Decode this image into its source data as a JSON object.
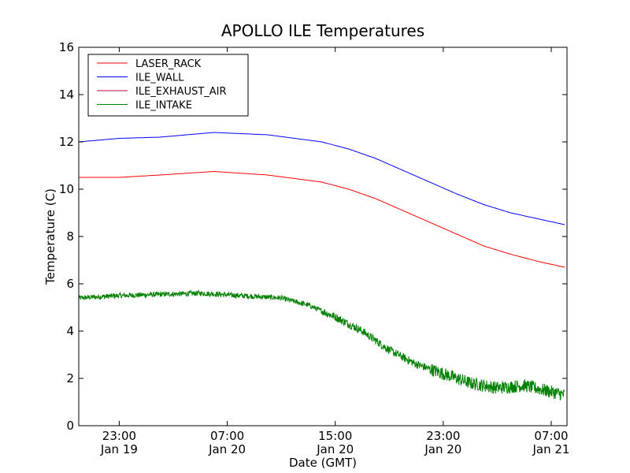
{
  "chart_data": {
    "type": "line",
    "title": "APOLLO ILE Temperatures",
    "xlabel": "Date (GMT)",
    "ylabel": "Temperature (C)",
    "ylim": [
      0,
      16
    ],
    "yticks": [
      "0",
      "2",
      "4",
      "6",
      "8",
      "10",
      "12",
      "14",
      "16"
    ],
    "x_start": "Jan 19 20:00",
    "x_end": "Jan 21 08:10",
    "xticks": [
      {
        "time": "23:00",
        "date": "Jan 19"
      },
      {
        "time": "07:00",
        "date": "Jan 20"
      },
      {
        "time": "15:00",
        "date": "Jan 20"
      },
      {
        "time": "23:00",
        "date": "Jan 20"
      },
      {
        "time": "07:00",
        "date": "Jan 21"
      }
    ],
    "grid": false,
    "legend_position": "top-left",
    "series": [
      {
        "name": "LASER_RACK",
        "color": "#ff0000",
        "x": [
          "Jan 19 20:00",
          "Jan 19 23:00",
          "Jan 20 02:00",
          "Jan 20 06:00",
          "Jan 20 10:00",
          "Jan 20 14:00",
          "Jan 20 16:00",
          "Jan 20 18:00",
          "Jan 20 20:00",
          "Jan 20 22:00",
          "Jan 21 00:00",
          "Jan 21 02:00",
          "Jan 21 04:00",
          "Jan 21 06:00",
          "Jan 21 08:00"
        ],
        "values": [
          10.5,
          10.5,
          10.6,
          10.75,
          10.6,
          10.3,
          10.0,
          9.6,
          9.1,
          8.6,
          8.1,
          7.6,
          7.25,
          6.95,
          6.7
        ]
      },
      {
        "name": "ILE_WALL",
        "color": "#0000ff",
        "x": [
          "Jan 19 20:00",
          "Jan 19 23:00",
          "Jan 20 02:00",
          "Jan 20 04:00",
          "Jan 20 06:00",
          "Jan 20 10:00",
          "Jan 20 14:00",
          "Jan 20 16:00",
          "Jan 20 18:00",
          "Jan 20 20:00",
          "Jan 20 22:00",
          "Jan 21 00:00",
          "Jan 21 02:00",
          "Jan 21 04:00",
          "Jan 21 06:00",
          "Jan 21 08:00"
        ],
        "values": [
          12.0,
          12.15,
          12.2,
          12.3,
          12.4,
          12.3,
          12.0,
          11.7,
          11.3,
          10.8,
          10.3,
          9.8,
          9.35,
          9.0,
          8.75,
          8.5
        ]
      },
      {
        "name": "ILE_EXHAUST_AIR",
        "color": "#bf0040",
        "x": [],
        "values": []
      },
      {
        "name": "ILE_INTAKE",
        "color": "#008000",
        "x": [
          "Jan 19 20:00",
          "Jan 19 23:00",
          "Jan 20 02:00",
          "Jan 20 05:00",
          "Jan 20 08:00",
          "Jan 20 11:00",
          "Jan 20 13:00",
          "Jan 20 15:00",
          "Jan 20 17:00",
          "Jan 20 19:00",
          "Jan 20 21:00",
          "Jan 20 23:00",
          "Jan 21 01:00",
          "Jan 21 03:00",
          "Jan 21 05:00",
          "Jan 21 08:00"
        ],
        "values": [
          5.4,
          5.5,
          5.55,
          5.6,
          5.5,
          5.4,
          5.1,
          4.6,
          4.0,
          3.2,
          2.6,
          2.2,
          1.8,
          1.6,
          1.7,
          1.3
        ]
      }
    ]
  }
}
